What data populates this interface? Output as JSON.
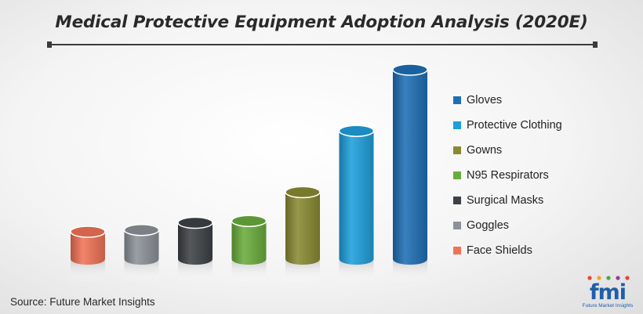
{
  "header": {
    "title": "Medical Protective Equipment Adoption Analysis (2020E)"
  },
  "footer": {
    "source": "Source: Future Market Insights"
  },
  "logo": {
    "mark": "fmi",
    "subtitle": "Future Market Insights",
    "dot_colors": [
      "#e4453a",
      "#f2a51a",
      "#4aa845",
      "#8e3f98",
      "#e4453a"
    ]
  },
  "chart_data": {
    "type": "bar",
    "title": "Medical Protective Equipment Adoption Analysis (2020E)",
    "categories": [
      "Face Shields",
      "Goggles",
      "Surgical Masks",
      "N95 Respirators",
      "Gowns",
      "Protective Clothing",
      "Gloves"
    ],
    "values": [
      1,
      1.1,
      1.5,
      1.6,
      3.2,
      6.6,
      10
    ],
    "colors": [
      "#f07357",
      "#8c9199",
      "#3d4145",
      "#6aac3c",
      "#8a8a32",
      "#1e9fdc",
      "#1e6fb5"
    ],
    "legend": {
      "placement": "right",
      "entries": [
        "Gloves",
        "Protective Clothing",
        "Gowns",
        "N95 Respirators",
        "Surgical Masks",
        "Goggles",
        "Face Shields"
      ],
      "colors": [
        "#1e6fb5",
        "#1e9fdc",
        "#8a8a32",
        "#6aac3c",
        "#3d4145",
        "#8c9199",
        "#f07357"
      ]
    },
    "ylim": [
      0,
      10
    ],
    "grid": false,
    "xlabel": "",
    "ylabel": ""
  }
}
